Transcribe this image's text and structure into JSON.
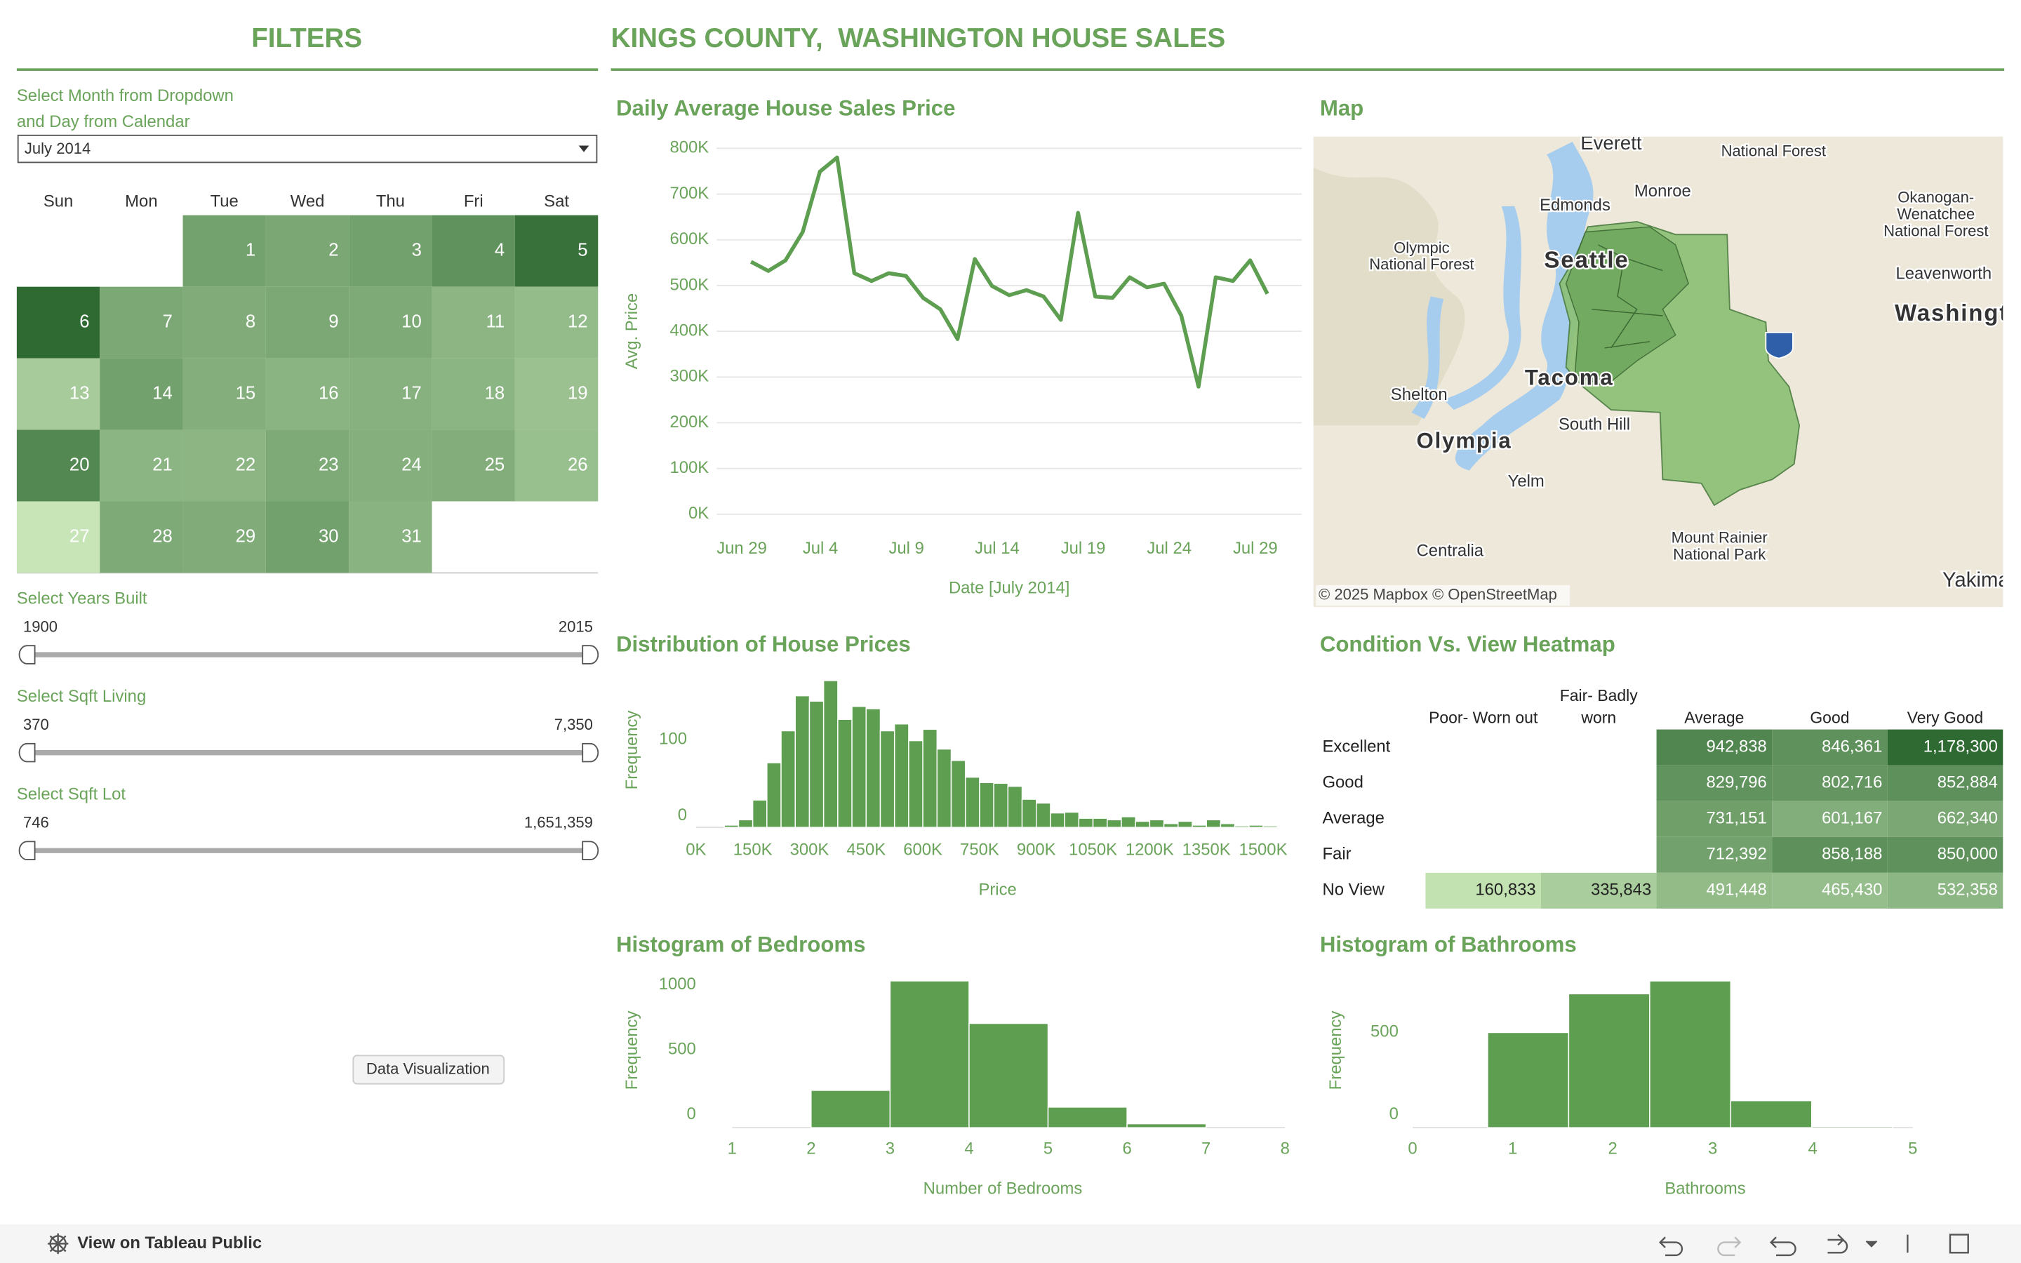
{
  "header": {
    "filters_title": "FILTERS",
    "title": "KINGS COUNTY,  WASHINGTON HOUSE SALES"
  },
  "filters": {
    "calendar_label": [
      "Select Month from Dropdown",
      "and Day from Calendar"
    ],
    "month": "July 2014",
    "weekdays": [
      "Sun",
      "Mon",
      "Tue",
      "Wed",
      "Thu",
      "Fri",
      "Sat"
    ],
    "days": [
      1,
      2,
      3,
      4,
      5,
      6,
      7,
      8,
      9,
      10,
      11,
      12,
      13,
      14,
      15,
      16,
      17,
      18,
      19,
      20,
      21,
      22,
      23,
      24,
      25,
      26,
      27,
      28,
      29,
      30,
      31
    ],
    "sliders": [
      {
        "label": "Select Years Built",
        "min": "1900",
        "max": "2015"
      },
      {
        "label": "Select Sqft Living",
        "min": "370",
        "max": "7,350"
      },
      {
        "label": "Select Sqft Lot",
        "min": "746",
        "max": "1,651,359"
      }
    ]
  },
  "chart_data": [
    {
      "type": "line",
      "title": "Daily Average House Sales Price",
      "x_label": "Date [July 2014]",
      "y_label": "Avg. Price",
      "color": "#5e9e50",
      "grid": true,
      "x": [
        "2014-07-01",
        "2014-07-02",
        "2014-07-03",
        "2014-07-04",
        "2014-07-05",
        "2014-07-06",
        "2014-07-07",
        "2014-07-08",
        "2014-07-09",
        "2014-07-10",
        "2014-07-11",
        "2014-07-12",
        "2014-07-13",
        "2014-07-14",
        "2014-07-15",
        "2014-07-16",
        "2014-07-17",
        "2014-07-18",
        "2014-07-19",
        "2014-07-20",
        "2014-07-21",
        "2014-07-22",
        "2014-07-23",
        "2014-07-24",
        "2014-07-25",
        "2014-07-26",
        "2014-07-27",
        "2014-07-28",
        "2014-07-29",
        "2014-07-30",
        "2014-07-31"
      ],
      "values": [
        552000,
        532000,
        555000,
        617000,
        749000,
        780000,
        527000,
        510000,
        527000,
        521000,
        473000,
        448000,
        383000,
        558000,
        499000,
        479000,
        490000,
        476000,
        425000,
        659000,
        476000,
        473000,
        518000,
        496000,
        504000,
        434000,
        279000,
        518000,
        510000,
        555000,
        482000
      ],
      "xlim": [
        "2014-06-29",
        "2014-08-02"
      ],
      "xticks": [
        {
          "value": "2014-06-29",
          "label": "Jun 29"
        },
        {
          "value": "2014-07-04",
          "label": "Jul 4"
        },
        {
          "value": "2014-07-09",
          "label": "Jul 9"
        },
        {
          "value": "2014-07-14",
          "label": "Jul 14"
        },
        {
          "value": "2014-07-19",
          "label": "Jul 19"
        },
        {
          "value": "2014-07-24",
          "label": "Jul 24"
        },
        {
          "value": "2014-07-29",
          "label": "Jul 29"
        }
      ],
      "ylim": [
        0,
        820000
      ],
      "yticks": [
        {
          "value": 0,
          "label": "0K"
        },
        {
          "value": 100000,
          "label": "100K"
        },
        {
          "value": 200000,
          "label": "200K"
        },
        {
          "value": 300000,
          "label": "300K"
        },
        {
          "value": 400000,
          "label": "400K"
        },
        {
          "value": 500000,
          "label": "500K"
        },
        {
          "value": 600000,
          "label": "600K"
        },
        {
          "value": 700000,
          "label": "700K"
        },
        {
          "value": 800000,
          "label": "800K"
        }
      ]
    },
    {
      "type": "histogram",
      "title": "Distribution of House Prices",
      "x_label": "Price",
      "y_label": "Frequency",
      "color": "#5e9e50",
      "bins": [
        75000,
        112500,
        150000,
        187500,
        225000,
        262500,
        300000,
        337500,
        375000,
        412500,
        450000,
        487500,
        525000,
        562500,
        600000,
        637500,
        675000,
        712500,
        750000,
        787500,
        825000,
        862500,
        900000,
        937500,
        975000,
        1012500,
        1050000,
        1087500,
        1125000,
        1162500,
        1200000,
        1237500,
        1275000,
        1312500,
        1350000,
        1387500,
        1425000,
        1462500,
        1500000,
        1537500
      ],
      "values": [
        3,
        10,
        36,
        85,
        127,
        173,
        166,
        193,
        142,
        159,
        156,
        127,
        136,
        114,
        129,
        103,
        88,
        66,
        59,
        58,
        54,
        37,
        32,
        19,
        20,
        12,
        12,
        10,
        14,
        8,
        10,
        5,
        8,
        3,
        10,
        5,
        2,
        3,
        2
      ],
      "xlim": [
        0,
        1537500
      ],
      "xticks": [
        {
          "value": 0,
          "label": "0K"
        },
        {
          "value": 150000,
          "label": "150K"
        },
        {
          "value": 300000,
          "label": "300K"
        },
        {
          "value": 450000,
          "label": "450K"
        },
        {
          "value": 600000,
          "label": "600K"
        },
        {
          "value": 750000,
          "label": "750K"
        },
        {
          "value": 900000,
          "label": "900K"
        },
        {
          "value": 1050000,
          "label": "1050K"
        },
        {
          "value": 1200000,
          "label": "1200K"
        },
        {
          "value": 1350000,
          "label": "1350K"
        },
        {
          "value": 1500000,
          "label": "1500K"
        }
      ],
      "ylim": [
        0,
        205
      ],
      "yticks": [
        0,
        100
      ]
    },
    {
      "type": "heatmap",
      "title": "Condition Vs. View Heatmap",
      "columns": [
        "Poor- Worn out",
        "Fair- Badly worn",
        "Average",
        "Good",
        "Very Good"
      ],
      "rows": [
        "Excellent",
        "Good",
        "Average",
        "Fair",
        "No View"
      ],
      "colors": [
        "#c2e2b2",
        "#2f6a32"
      ],
      "values": [
        [
          null,
          null,
          942838,
          846361,
          1178300
        ],
        [
          null,
          null,
          829796,
          802716,
          852884
        ],
        [
          null,
          null,
          731151,
          601167,
          662340
        ],
        [
          null,
          null,
          712392,
          858188,
          850000
        ],
        [
          160833,
          335843,
          491448,
          465430,
          532358
        ]
      ],
      "value_labels": [
        [
          null,
          null,
          "942,838",
          "846,361",
          "1,178,300"
        ],
        [
          null,
          null,
          "829,796",
          "802,716",
          "852,884"
        ],
        [
          null,
          null,
          "731,151",
          "601,167",
          "662,340"
        ],
        [
          null,
          null,
          "712,392",
          "858,188",
          "850,000"
        ],
        [
          "160,833",
          "335,843",
          "491,448",
          "465,430",
          "532,358"
        ]
      ]
    },
    {
      "type": "histogram",
      "title": "Histogram of Bedrooms",
      "x_label": "Number of Bedrooms",
      "y_label": "Frequency",
      "color": "#5e9e50",
      "bins": [
        1,
        2,
        3,
        4,
        5,
        6,
        7,
        8
      ],
      "values": [
        0,
        287,
        1129,
        802,
        158,
        30,
        0
      ],
      "xlim": [
        1,
        8
      ],
      "xticks": [
        1,
        2,
        3,
        4,
        5,
        6,
        7,
        8
      ],
      "ylim": [
        0,
        1140
      ],
      "yticks": [
        0,
        500,
        1000
      ]
    },
    {
      "type": "histogram",
      "title": "Histogram of Bathrooms",
      "x_label": "Bathrooms",
      "y_label": "Frequency",
      "color": "#5e9e50",
      "bins": [
        0.75,
        1.56,
        2.37,
        3.18,
        3.99,
        4.8
      ],
      "values": [
        578,
        813,
        891,
        164,
        8
      ],
      "xlim": [
        0,
        5
      ],
      "xticks": [
        0,
        1,
        2,
        3,
        4,
        5
      ],
      "ylim": [
        0,
        900
      ],
      "yticks": [
        0,
        500
      ]
    }
  ],
  "map": {
    "title": "Map",
    "labels": [
      "Everett",
      "National Forest",
      "Monroe",
      "Edmonds",
      "Okanogan-",
      "Wenatchee",
      "National Forest",
      "Olympic",
      "National Forest",
      "Leavenworth",
      "Washington",
      "Seattle",
      "Shelton",
      "Tacoma",
      "South Hill",
      "Olympia",
      "Yelm",
      "Centralia",
      "Mount Rainier",
      "National Park",
      "Yakima"
    ],
    "attribution": "© 2025 Mapbox © OpenStreetMap"
  },
  "tooltip": "Data Visualization",
  "footer": {
    "link": "View on Tableau Public"
  }
}
